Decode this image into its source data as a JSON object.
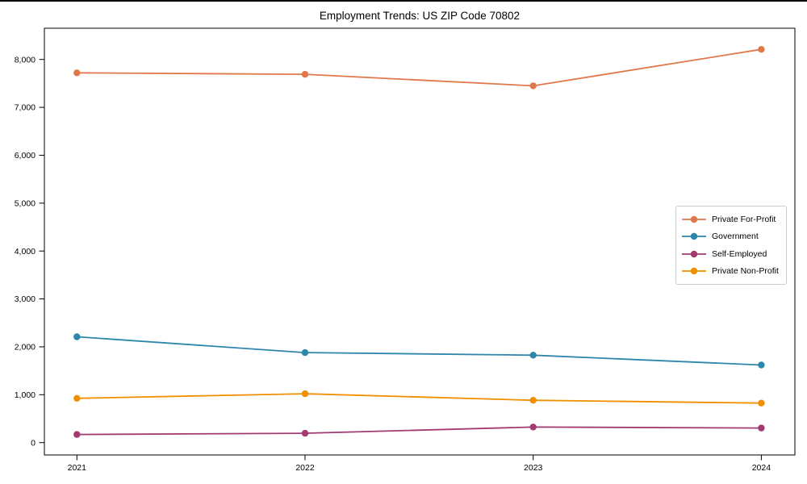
{
  "chart_data": {
    "type": "line",
    "title": "Employment Trends: US ZIP Code 70802",
    "xlabel": "",
    "ylabel": "",
    "categories": [
      "2021",
      "2022",
      "2023",
      "2024"
    ],
    "series": [
      {
        "name": "Private For-Profit",
        "color": "#E1784C",
        "values": [
          7720,
          7690,
          7450,
          8210
        ]
      },
      {
        "name": "Government",
        "color": "#2E86AB",
        "values": [
          2210,
          1880,
          1825,
          1620
        ]
      },
      {
        "name": "Self-Employed",
        "color": "#A23B72",
        "values": [
          170,
          195,
          325,
          305
        ]
      },
      {
        "name": "Private Non-Profit",
        "color": "#F18F01",
        "values": [
          925,
          1020,
          885,
          825
        ]
      }
    ],
    "ylim": [
      0,
      8000
    ],
    "ytick_values": [
      0,
      1000,
      2000,
      3000,
      4000,
      5000,
      6000,
      7000,
      8000
    ],
    "ytick_labels": [
      "0",
      "1,000",
      "2,000",
      "3,000",
      "4,000",
      "5,000",
      "6,000",
      "7,000",
      "8,000"
    ],
    "legend_position": "center-right",
    "grid": false,
    "marker": "circle",
    "axis_color": "#000000"
  }
}
